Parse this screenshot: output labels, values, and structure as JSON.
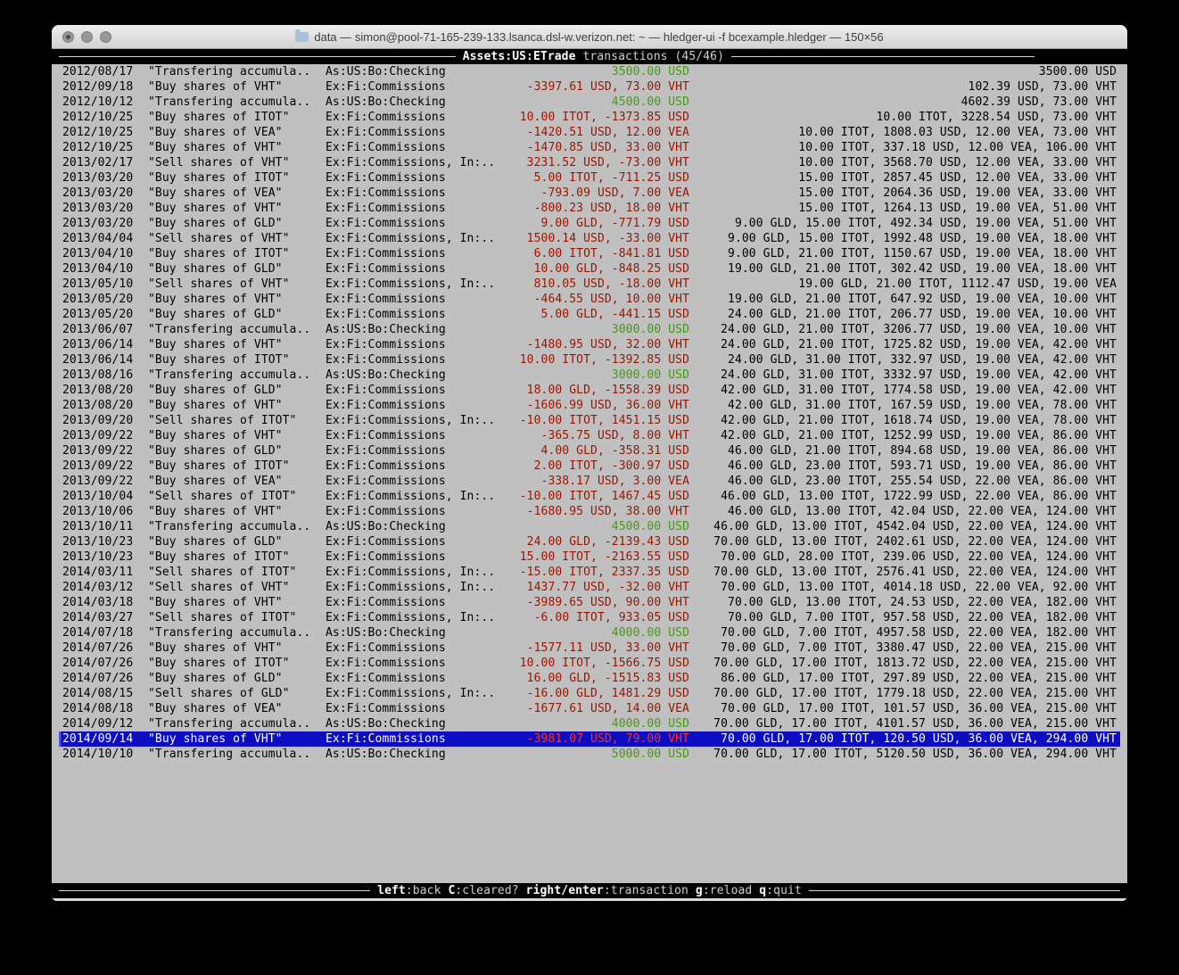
{
  "window": {
    "title": "data — simon@pool-71-165-239-133.lsanca.dsl-w.verizon.net: ~ — hledger-ui -f bcexample.hledger — 150×56"
  },
  "header": {
    "title_bold": "Assets:US:ETrade",
    "title_rest": " transactions (45/46)"
  },
  "footer": {
    "items": [
      {
        "key": "left",
        "desc": ":back"
      },
      {
        "key": "C",
        "desc": ":cleared?"
      },
      {
        "key": "right/enter",
        "desc": ":transaction"
      },
      {
        "key": "g",
        "desc": ":reload"
      },
      {
        "key": "q",
        "desc": ":quit"
      }
    ]
  },
  "state": {
    "selected_index": 44,
    "position_indicator": "45/46"
  },
  "colors": {
    "terminal_bg": "#c0c0c0",
    "bar_bg": "#000000",
    "amount_negative": "#9a1400",
    "amount_positive": "#3fa008",
    "selection_bg": "#0d0dc1",
    "selection_amount_negative": "#ff3022"
  },
  "transactions": [
    {
      "date": "2012/08/17",
      "description": "\"Transfering accumula..",
      "account": "As:US:Bo:Checking",
      "amount": "3500.00 USD",
      "amount_type": "positive",
      "balance": "3500.00 USD"
    },
    {
      "date": "2012/09/18",
      "description": "\"Buy shares of VHT\"",
      "account": "Ex:Fi:Commissions",
      "amount": "-3397.61 USD, 73.00 VHT",
      "amount_type": "negative",
      "balance": "102.39 USD, 73.00 VHT"
    },
    {
      "date": "2012/10/12",
      "description": "\"Transfering accumula..",
      "account": "As:US:Bo:Checking",
      "amount": "4500.00 USD",
      "amount_type": "positive",
      "balance": "4602.39 USD, 73.00 VHT"
    },
    {
      "date": "2012/10/25",
      "description": "\"Buy shares of ITOT\"",
      "account": "Ex:Fi:Commissions",
      "amount": "10.00 ITOT, -1373.85 USD",
      "amount_type": "negative",
      "balance": "10.00 ITOT, 3228.54 USD, 73.00 VHT"
    },
    {
      "date": "2012/10/25",
      "description": "\"Buy shares of VEA\"",
      "account": "Ex:Fi:Commissions",
      "amount": "-1420.51 USD, 12.00 VEA",
      "amount_type": "negative",
      "balance": "10.00 ITOT, 1808.03 USD, 12.00 VEA, 73.00 VHT"
    },
    {
      "date": "2012/10/25",
      "description": "\"Buy shares of VHT\"",
      "account": "Ex:Fi:Commissions",
      "amount": "-1470.85 USD, 33.00 VHT",
      "amount_type": "negative",
      "balance": "10.00 ITOT, 337.18 USD, 12.00 VEA, 106.00 VHT"
    },
    {
      "date": "2013/02/17",
      "description": "\"Sell shares of VHT\"",
      "account": "Ex:Fi:Commissions, In:..",
      "amount": "3231.52 USD, -73.00 VHT",
      "amount_type": "negative",
      "balance": "10.00 ITOT, 3568.70 USD, 12.00 VEA, 33.00 VHT"
    },
    {
      "date": "2013/03/20",
      "description": "\"Buy shares of ITOT\"",
      "account": "Ex:Fi:Commissions",
      "amount": "5.00 ITOT, -711.25 USD",
      "amount_type": "negative",
      "balance": "15.00 ITOT, 2857.45 USD, 12.00 VEA, 33.00 VHT"
    },
    {
      "date": "2013/03/20",
      "description": "\"Buy shares of VEA\"",
      "account": "Ex:Fi:Commissions",
      "amount": "-793.09 USD, 7.00 VEA",
      "amount_type": "negative",
      "balance": "15.00 ITOT, 2064.36 USD, 19.00 VEA, 33.00 VHT"
    },
    {
      "date": "2013/03/20",
      "description": "\"Buy shares of VHT\"",
      "account": "Ex:Fi:Commissions",
      "amount": "-800.23 USD, 18.00 VHT",
      "amount_type": "negative",
      "balance": "15.00 ITOT, 1264.13 USD, 19.00 VEA, 51.00 VHT"
    },
    {
      "date": "2013/03/20",
      "description": "\"Buy shares of GLD\"",
      "account": "Ex:Fi:Commissions",
      "amount": "9.00 GLD, -771.79 USD",
      "amount_type": "negative",
      "balance": "9.00 GLD, 15.00 ITOT, 492.34 USD, 19.00 VEA, 51.00 VHT"
    },
    {
      "date": "2013/04/04",
      "description": "\"Sell shares of VHT\"",
      "account": "Ex:Fi:Commissions, In:..",
      "amount": "1500.14 USD, -33.00 VHT",
      "amount_type": "negative",
      "balance": "9.00 GLD, 15.00 ITOT, 1992.48 USD, 19.00 VEA, 18.00 VHT"
    },
    {
      "date": "2013/04/10",
      "description": "\"Buy shares of ITOT\"",
      "account": "Ex:Fi:Commissions",
      "amount": "6.00 ITOT, -841.81 USD",
      "amount_type": "negative",
      "balance": "9.00 GLD, 21.00 ITOT, 1150.67 USD, 19.00 VEA, 18.00 VHT"
    },
    {
      "date": "2013/04/10",
      "description": "\"Buy shares of GLD\"",
      "account": "Ex:Fi:Commissions",
      "amount": "10.00 GLD, -848.25 USD",
      "amount_type": "negative",
      "balance": "19.00 GLD, 21.00 ITOT, 302.42 USD, 19.00 VEA, 18.00 VHT"
    },
    {
      "date": "2013/05/10",
      "description": "\"Sell shares of VHT\"",
      "account": "Ex:Fi:Commissions, In:..",
      "amount": "810.05 USD, -18.00 VHT",
      "amount_type": "negative",
      "balance": "19.00 GLD, 21.00 ITOT, 1112.47 USD, 19.00 VEA"
    },
    {
      "date": "2013/05/20",
      "description": "\"Buy shares of VHT\"",
      "account": "Ex:Fi:Commissions",
      "amount": "-464.55 USD, 10.00 VHT",
      "amount_type": "negative",
      "balance": "19.00 GLD, 21.00 ITOT, 647.92 USD, 19.00 VEA, 10.00 VHT"
    },
    {
      "date": "2013/05/20",
      "description": "\"Buy shares of GLD\"",
      "account": "Ex:Fi:Commissions",
      "amount": "5.00 GLD, -441.15 USD",
      "amount_type": "negative",
      "balance": "24.00 GLD, 21.00 ITOT, 206.77 USD, 19.00 VEA, 10.00 VHT"
    },
    {
      "date": "2013/06/07",
      "description": "\"Transfering accumula..",
      "account": "As:US:Bo:Checking",
      "amount": "3000.00 USD",
      "amount_type": "positive",
      "balance": "24.00 GLD, 21.00 ITOT, 3206.77 USD, 19.00 VEA, 10.00 VHT"
    },
    {
      "date": "2013/06/14",
      "description": "\"Buy shares of VHT\"",
      "account": "Ex:Fi:Commissions",
      "amount": "-1480.95 USD, 32.00 VHT",
      "amount_type": "negative",
      "balance": "24.00 GLD, 21.00 ITOT, 1725.82 USD, 19.00 VEA, 42.00 VHT"
    },
    {
      "date": "2013/06/14",
      "description": "\"Buy shares of ITOT\"",
      "account": "Ex:Fi:Commissions",
      "amount": "10.00 ITOT, -1392.85 USD",
      "amount_type": "negative",
      "balance": "24.00 GLD, 31.00 ITOT, 332.97 USD, 19.00 VEA, 42.00 VHT"
    },
    {
      "date": "2013/08/16",
      "description": "\"Transfering accumula..",
      "account": "As:US:Bo:Checking",
      "amount": "3000.00 USD",
      "amount_type": "positive",
      "balance": "24.00 GLD, 31.00 ITOT, 3332.97 USD, 19.00 VEA, 42.00 VHT"
    },
    {
      "date": "2013/08/20",
      "description": "\"Buy shares of GLD\"",
      "account": "Ex:Fi:Commissions",
      "amount": "18.00 GLD, -1558.39 USD",
      "amount_type": "negative",
      "balance": "42.00 GLD, 31.00 ITOT, 1774.58 USD, 19.00 VEA, 42.00 VHT"
    },
    {
      "date": "2013/08/20",
      "description": "\"Buy shares of VHT\"",
      "account": "Ex:Fi:Commissions",
      "amount": "-1606.99 USD, 36.00 VHT",
      "amount_type": "negative",
      "balance": "42.00 GLD, 31.00 ITOT, 167.59 USD, 19.00 VEA, 78.00 VHT"
    },
    {
      "date": "2013/09/20",
      "description": "\"Sell shares of ITOT\"",
      "account": "Ex:Fi:Commissions, In:..",
      "amount": "-10.00 ITOT, 1451.15 USD",
      "amount_type": "negative",
      "balance": "42.00 GLD, 21.00 ITOT, 1618.74 USD, 19.00 VEA, 78.00 VHT"
    },
    {
      "date": "2013/09/22",
      "description": "\"Buy shares of VHT\"",
      "account": "Ex:Fi:Commissions",
      "amount": "-365.75 USD, 8.00 VHT",
      "amount_type": "negative",
      "balance": "42.00 GLD, 21.00 ITOT, 1252.99 USD, 19.00 VEA, 86.00 VHT"
    },
    {
      "date": "2013/09/22",
      "description": "\"Buy shares of GLD\"",
      "account": "Ex:Fi:Commissions",
      "amount": "4.00 GLD, -358.31 USD",
      "amount_type": "negative",
      "balance": "46.00 GLD, 21.00 ITOT, 894.68 USD, 19.00 VEA, 86.00 VHT"
    },
    {
      "date": "2013/09/22",
      "description": "\"Buy shares of ITOT\"",
      "account": "Ex:Fi:Commissions",
      "amount": "2.00 ITOT, -300.97 USD",
      "amount_type": "negative",
      "balance": "46.00 GLD, 23.00 ITOT, 593.71 USD, 19.00 VEA, 86.00 VHT"
    },
    {
      "date": "2013/09/22",
      "description": "\"Buy shares of VEA\"",
      "account": "Ex:Fi:Commissions",
      "amount": "-338.17 USD, 3.00 VEA",
      "amount_type": "negative",
      "balance": "46.00 GLD, 23.00 ITOT, 255.54 USD, 22.00 VEA, 86.00 VHT"
    },
    {
      "date": "2013/10/04",
      "description": "\"Sell shares of ITOT\"",
      "account": "Ex:Fi:Commissions, In:..",
      "amount": "-10.00 ITOT, 1467.45 USD",
      "amount_type": "negative",
      "balance": "46.00 GLD, 13.00 ITOT, 1722.99 USD, 22.00 VEA, 86.00 VHT"
    },
    {
      "date": "2013/10/06",
      "description": "\"Buy shares of VHT\"",
      "account": "Ex:Fi:Commissions",
      "amount": "-1680.95 USD, 38.00 VHT",
      "amount_type": "negative",
      "balance": "46.00 GLD, 13.00 ITOT, 42.04 USD, 22.00 VEA, 124.00 VHT"
    },
    {
      "date": "2013/10/11",
      "description": "\"Transfering accumula..",
      "account": "As:US:Bo:Checking",
      "amount": "4500.00 USD",
      "amount_type": "positive",
      "balance": "46.00 GLD, 13.00 ITOT, 4542.04 USD, 22.00 VEA, 124.00 VHT"
    },
    {
      "date": "2013/10/23",
      "description": "\"Buy shares of GLD\"",
      "account": "Ex:Fi:Commissions",
      "amount": "24.00 GLD, -2139.43 USD",
      "amount_type": "negative",
      "balance": "70.00 GLD, 13.00 ITOT, 2402.61 USD, 22.00 VEA, 124.00 VHT"
    },
    {
      "date": "2013/10/23",
      "description": "\"Buy shares of ITOT\"",
      "account": "Ex:Fi:Commissions",
      "amount": "15.00 ITOT, -2163.55 USD",
      "amount_type": "negative",
      "balance": "70.00 GLD, 28.00 ITOT, 239.06 USD, 22.00 VEA, 124.00 VHT"
    },
    {
      "date": "2014/03/11",
      "description": "\"Sell shares of ITOT\"",
      "account": "Ex:Fi:Commissions, In:..",
      "amount": "-15.00 ITOT, 2337.35 USD",
      "amount_type": "negative",
      "balance": "70.00 GLD, 13.00 ITOT, 2576.41 USD, 22.00 VEA, 124.00 VHT"
    },
    {
      "date": "2014/03/12",
      "description": "\"Sell shares of VHT\"",
      "account": "Ex:Fi:Commissions, In:..",
      "amount": "1437.77 USD, -32.00 VHT",
      "amount_type": "negative",
      "balance": "70.00 GLD, 13.00 ITOT, 4014.18 USD, 22.00 VEA, 92.00 VHT"
    },
    {
      "date": "2014/03/18",
      "description": "\"Buy shares of VHT\"",
      "account": "Ex:Fi:Commissions",
      "amount": "-3989.65 USD, 90.00 VHT",
      "amount_type": "negative",
      "balance": "70.00 GLD, 13.00 ITOT, 24.53 USD, 22.00 VEA, 182.00 VHT"
    },
    {
      "date": "2014/03/27",
      "description": "\"Sell shares of ITOT\"",
      "account": "Ex:Fi:Commissions, In:..",
      "amount": "-6.00 ITOT, 933.05 USD",
      "amount_type": "negative",
      "balance": "70.00 GLD, 7.00 ITOT, 957.58 USD, 22.00 VEA, 182.00 VHT"
    },
    {
      "date": "2014/07/18",
      "description": "\"Transfering accumula..",
      "account": "As:US:Bo:Checking",
      "amount": "4000.00 USD",
      "amount_type": "positive",
      "balance": "70.00 GLD, 7.00 ITOT, 4957.58 USD, 22.00 VEA, 182.00 VHT"
    },
    {
      "date": "2014/07/26",
      "description": "\"Buy shares of VHT\"",
      "account": "Ex:Fi:Commissions",
      "amount": "-1577.11 USD, 33.00 VHT",
      "amount_type": "negative",
      "balance": "70.00 GLD, 7.00 ITOT, 3380.47 USD, 22.00 VEA, 215.00 VHT"
    },
    {
      "date": "2014/07/26",
      "description": "\"Buy shares of ITOT\"",
      "account": "Ex:Fi:Commissions",
      "amount": "10.00 ITOT, -1566.75 USD",
      "amount_type": "negative",
      "balance": "70.00 GLD, 17.00 ITOT, 1813.72 USD, 22.00 VEA, 215.00 VHT"
    },
    {
      "date": "2014/07/26",
      "description": "\"Buy shares of GLD\"",
      "account": "Ex:Fi:Commissions",
      "amount": "16.00 GLD, -1515.83 USD",
      "amount_type": "negative",
      "balance": "86.00 GLD, 17.00 ITOT, 297.89 USD, 22.00 VEA, 215.00 VHT"
    },
    {
      "date": "2014/08/15",
      "description": "\"Sell shares of GLD\"",
      "account": "Ex:Fi:Commissions, In:..",
      "amount": "-16.00 GLD, 1481.29 USD",
      "amount_type": "negative",
      "balance": "70.00 GLD, 17.00 ITOT, 1779.18 USD, 22.00 VEA, 215.00 VHT"
    },
    {
      "date": "2014/08/18",
      "description": "\"Buy shares of VEA\"",
      "account": "Ex:Fi:Commissions",
      "amount": "-1677.61 USD, 14.00 VEA",
      "amount_type": "negative",
      "balance": "70.00 GLD, 17.00 ITOT, 101.57 USD, 36.00 VEA, 215.00 VHT"
    },
    {
      "date": "2014/09/12",
      "description": "\"Transfering accumula..",
      "account": "As:US:Bo:Checking",
      "amount": "4000.00 USD",
      "amount_type": "positive",
      "balance": "70.00 GLD, 17.00 ITOT, 4101.57 USD, 36.00 VEA, 215.00 VHT"
    },
    {
      "date": "2014/09/14",
      "description": "\"Buy shares of VHT\"",
      "account": "Ex:Fi:Commissions",
      "amount": "-3981.07 USD, 79.00 VHT",
      "amount_type": "negative",
      "balance": "70.00 GLD, 17.00 ITOT, 120.50 USD, 36.00 VEA, 294.00 VHT"
    },
    {
      "date": "2014/10/10",
      "description": "\"Transfering accumula..",
      "account": "As:US:Bo:Checking",
      "amount": "5000.00 USD",
      "amount_type": "positive",
      "balance": "70.00 GLD, 17.00 ITOT, 5120.50 USD, 36.00 VEA, 294.00 VHT"
    }
  ]
}
